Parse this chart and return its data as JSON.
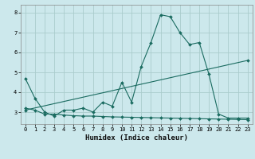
{
  "bg_color": "#cce8ec",
  "line_color": "#1a6b60",
  "grid_color": "#aacccc",
  "xlabel": "Humidex (Indice chaleur)",
  "ylim": [
    2.4,
    8.4
  ],
  "xlim": [
    -0.5,
    23.5
  ],
  "yticks": [
    3,
    4,
    5,
    6,
    7,
    8
  ],
  "xticks": [
    0,
    1,
    2,
    3,
    4,
    5,
    6,
    7,
    8,
    9,
    10,
    11,
    12,
    13,
    14,
    15,
    16,
    17,
    18,
    19,
    20,
    21,
    22,
    23
  ],
  "line1_x": [
    0,
    1,
    2,
    3,
    4,
    5,
    6,
    7,
    8,
    9,
    10,
    11,
    12,
    13,
    14,
    15,
    16,
    17,
    18,
    19,
    20,
    21,
    22,
    23
  ],
  "line1_y": [
    4.7,
    3.7,
    3.0,
    2.8,
    3.1,
    3.1,
    3.2,
    3.0,
    3.5,
    3.3,
    4.5,
    3.5,
    5.3,
    6.5,
    7.9,
    7.8,
    7.0,
    6.4,
    6.5,
    4.9,
    2.9,
    2.7,
    2.7,
    2.7
  ],
  "line2_x": [
    0,
    1,
    2,
    3,
    4,
    5,
    6,
    7,
    8,
    9,
    10,
    11,
    12,
    13,
    14,
    15,
    16,
    17,
    18,
    19,
    20,
    21,
    22,
    23
  ],
  "line2_y": [
    3.2,
    3.1,
    2.9,
    2.9,
    2.85,
    2.82,
    2.8,
    2.8,
    2.78,
    2.76,
    2.75,
    2.74,
    2.73,
    2.72,
    2.71,
    2.7,
    2.69,
    2.68,
    2.67,
    2.66,
    2.65,
    2.64,
    2.63,
    2.62
  ],
  "line3_x": [
    0,
    23
  ],
  "line3_y": [
    3.1,
    5.6
  ]
}
